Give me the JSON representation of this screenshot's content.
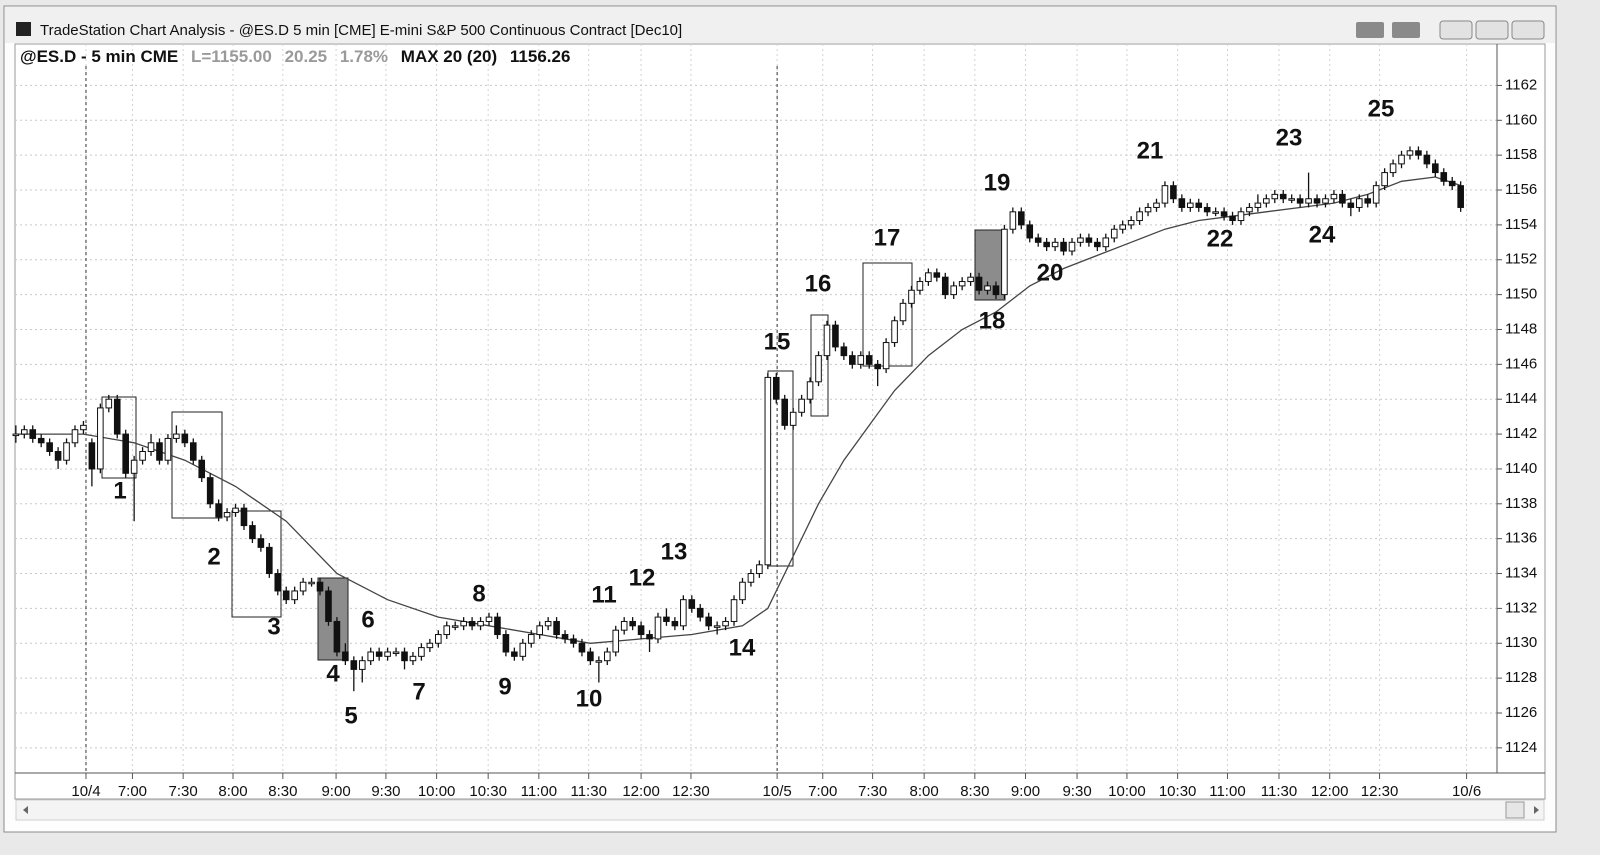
{
  "window": {
    "title": "TradeStation Chart Analysis - @ES.D 5 min [CME] E-mini S&P 500 Continuous Contract [Dec10]"
  },
  "header": {
    "symbol": "@ES.D - 5 min CME",
    "last": "L=1155.00",
    "change": "20.25",
    "change_pct": "1.78%",
    "indicator": "MAX 20 (20)",
    "indicator_value": "1156.26"
  },
  "chart_data": {
    "type": "candlestick",
    "ohlc": [
      [
        1142,
        1142.5,
        1141.5,
        1142
      ],
      [
        1142,
        1142.5,
        1141.75,
        1142.25
      ],
      [
        1142.25,
        1142.5,
        1141.5,
        1141.75
      ],
      [
        1141.75,
        1142,
        1141.25,
        1141.5
      ],
      [
        1141.5,
        1141.75,
        1140.75,
        1141
      ],
      [
        1141,
        1141.25,
        1140,
        1140.5
      ],
      [
        1140.5,
        1141.75,
        1140.25,
        1141.5
      ],
      [
        1141.5,
        1142.5,
        1141.25,
        1142.25
      ],
      [
        1142.25,
        1142.75,
        1142,
        1142.5
      ],
      [
        1141.5,
        1141.75,
        1139,
        1140
      ],
      [
        1140,
        1143.75,
        1139.75,
        1143.5
      ],
      [
        1143.5,
        1144.25,
        1143.25,
        1144
      ],
      [
        1144,
        1144.25,
        1141.75,
        1142
      ],
      [
        1142,
        1142.25,
        1139.5,
        1139.75
      ],
      [
        1139.75,
        1140.75,
        1137,
        1140.5
      ],
      [
        1140.5,
        1141.25,
        1140.25,
        1141
      ],
      [
        1141,
        1142,
        1140.75,
        1141.5
      ],
      [
        1141.5,
        1141.75,
        1140.25,
        1140.5
      ],
      [
        1140.5,
        1142,
        1140.25,
        1141.75
      ],
      [
        1141.75,
        1142.5,
        1141.5,
        1142
      ],
      [
        1142,
        1142.25,
        1141.25,
        1141.5
      ],
      [
        1141.5,
        1141.75,
        1140.25,
        1140.5
      ],
      [
        1140.5,
        1140.75,
        1139.25,
        1139.5
      ],
      [
        1139.5,
        1139.75,
        1137.75,
        1138
      ],
      [
        1138,
        1138.25,
        1137,
        1137.25
      ],
      [
        1137.25,
        1137.75,
        1137,
        1137.5
      ],
      [
        1137.5,
        1138,
        1137.25,
        1137.75
      ],
      [
        1137.75,
        1138,
        1136.5,
        1136.75
      ],
      [
        1136.75,
        1137,
        1135.75,
        1136
      ],
      [
        1136,
        1136.25,
        1135.25,
        1135.5
      ],
      [
        1135.5,
        1135.75,
        1133.75,
        1134
      ],
      [
        1134,
        1134.25,
        1132.75,
        1133
      ],
      [
        1133,
        1133.25,
        1132.25,
        1132.5
      ],
      [
        1132.5,
        1133.25,
        1132.25,
        1133
      ],
      [
        1133,
        1133.75,
        1132.75,
        1133.5
      ],
      [
        1133.5,
        1133.75,
        1133.25,
        1133.5
      ],
      [
        1133.5,
        1133.75,
        1132.75,
        1133
      ],
      [
        1133,
        1133.25,
        1131,
        1131.25
      ],
      [
        1131.25,
        1131.5,
        1129.25,
        1129.5
      ],
      [
        1129.5,
        1130,
        1128.75,
        1129
      ],
      [
        1129,
        1129.25,
        1127.25,
        1128.5
      ],
      [
        1128.5,
        1129.25,
        1127.75,
        1129
      ],
      [
        1129,
        1129.75,
        1128.75,
        1129.5
      ],
      [
        1129.5,
        1129.75,
        1129,
        1129.25
      ],
      [
        1129.25,
        1129.75,
        1129,
        1129.5
      ],
      [
        1129.5,
        1129.75,
        1129.25,
        1129.5
      ],
      [
        1129.5,
        1129.75,
        1128.5,
        1129
      ],
      [
        1129,
        1129.5,
        1128.75,
        1129.25
      ],
      [
        1129.25,
        1130,
        1129,
        1129.75
      ],
      [
        1129.75,
        1130.25,
        1129.5,
        1130
      ],
      [
        1130,
        1130.75,
        1129.75,
        1130.5
      ],
      [
        1130.5,
        1131.25,
        1130.25,
        1131
      ],
      [
        1131,
        1131.25,
        1130.75,
        1131
      ],
      [
        1131,
        1131.5,
        1130.75,
        1131.25
      ],
      [
        1131.25,
        1131.5,
        1130.75,
        1131
      ],
      [
        1131,
        1131.5,
        1130.75,
        1131.25
      ],
      [
        1131.25,
        1131.75,
        1131,
        1131.5
      ],
      [
        1131.5,
        1131.75,
        1130.25,
        1130.5
      ],
      [
        1130.5,
        1130.75,
        1129.25,
        1129.5
      ],
      [
        1129.5,
        1129.75,
        1129,
        1129.25
      ],
      [
        1129.25,
        1130.25,
        1129,
        1130
      ],
      [
        1130,
        1130.75,
        1129.75,
        1130.5
      ],
      [
        1130.5,
        1131.25,
        1130.25,
        1131
      ],
      [
        1131,
        1131.5,
        1130.75,
        1131.25
      ],
      [
        1131.25,
        1131.5,
        1130.25,
        1130.5
      ],
      [
        1130.5,
        1130.75,
        1130,
        1130.25
      ],
      [
        1130.25,
        1130.5,
        1129.75,
        1130
      ],
      [
        1130,
        1130.25,
        1129.25,
        1129.5
      ],
      [
        1129.5,
        1129.75,
        1128.75,
        1129
      ],
      [
        1129,
        1129.25,
        1127.75,
        1129
      ],
      [
        1129,
        1129.75,
        1128.75,
        1129.5
      ],
      [
        1129.5,
        1131,
        1129.25,
        1130.75
      ],
      [
        1130.75,
        1131.5,
        1130.5,
        1131.25
      ],
      [
        1131.25,
        1131.5,
        1130.75,
        1131
      ],
      [
        1131,
        1131.25,
        1130.25,
        1130.5
      ],
      [
        1130.5,
        1130.75,
        1129.5,
        1130.25
      ],
      [
        1130.25,
        1131.75,
        1130,
        1131.5
      ],
      [
        1131.5,
        1132,
        1131,
        1131.25
      ],
      [
        1131.25,
        1131.5,
        1130.75,
        1131
      ],
      [
        1131,
        1132.75,
        1130.75,
        1132.5
      ],
      [
        1132.5,
        1132.75,
        1131.75,
        1132
      ],
      [
        1132,
        1132.25,
        1131.25,
        1131.5
      ],
      [
        1131.5,
        1131.75,
        1130.75,
        1131
      ],
      [
        1131,
        1131.25,
        1130.5,
        1131
      ],
      [
        1131,
        1131.5,
        1130.75,
        1131.25
      ],
      [
        1131.25,
        1132.75,
        1131,
        1132.5
      ],
      [
        1132.5,
        1133.75,
        1132.25,
        1133.5
      ],
      [
        1133.5,
        1134.25,
        1133.25,
        1134
      ],
      [
        1134,
        1134.75,
        1133.75,
        1134.5
      ],
      [
        1134.5,
        1145.5,
        1134.25,
        1145.25
      ],
      [
        1145.25,
        1145.5,
        1143.75,
        1144
      ],
      [
        1144,
        1144.25,
        1142.25,
        1142.5
      ],
      [
        1142.5,
        1143.5,
        1142.25,
        1143.25
      ],
      [
        1143.25,
        1144.25,
        1143,
        1144
      ],
      [
        1144,
        1145.25,
        1143.75,
        1145
      ],
      [
        1145,
        1146.75,
        1144.75,
        1146.5
      ],
      [
        1146.5,
        1148.5,
        1146.25,
        1148.25
      ],
      [
        1148.25,
        1148.5,
        1146.75,
        1147
      ],
      [
        1147,
        1147.25,
        1146.25,
        1146.5
      ],
      [
        1146.5,
        1146.75,
        1145.75,
        1146
      ],
      [
        1146,
        1146.75,
        1145.75,
        1146.5
      ],
      [
        1146.5,
        1146.75,
        1145.75,
        1146
      ],
      [
        1146,
        1146.25,
        1144.75,
        1145.75
      ],
      [
        1145.75,
        1147.5,
        1145.5,
        1147.25
      ],
      [
        1147.25,
        1148.75,
        1147,
        1148.5
      ],
      [
        1148.5,
        1149.75,
        1148.25,
        1149.5
      ],
      [
        1149.5,
        1150.5,
        1149.25,
        1150.25
      ],
      [
        1150.25,
        1151,
        1150,
        1150.75
      ],
      [
        1150.75,
        1151.5,
        1150.5,
        1151.25
      ],
      [
        1151.25,
        1151.5,
        1150.75,
        1151
      ],
      [
        1151,
        1151.25,
        1149.75,
        1150
      ],
      [
        1150,
        1150.75,
        1149.75,
        1150.5
      ],
      [
        1150.5,
        1151,
        1150.25,
        1150.75
      ],
      [
        1150.75,
        1151.25,
        1150.5,
        1151
      ],
      [
        1151,
        1151.25,
        1150,
        1150.25
      ],
      [
        1150.25,
        1150.75,
        1150,
        1150.5
      ],
      [
        1150.5,
        1150.75,
        1149.75,
        1150
      ],
      [
        1150,
        1154,
        1149.75,
        1153.75
      ],
      [
        1153.75,
        1155,
        1153.5,
        1154.75
      ],
      [
        1154.75,
        1155,
        1153.75,
        1154
      ],
      [
        1154,
        1154.25,
        1153,
        1153.25
      ],
      [
        1153.25,
        1153.5,
        1152.75,
        1153
      ],
      [
        1153,
        1153.25,
        1152.5,
        1152.75
      ],
      [
        1152.75,
        1153.25,
        1152.5,
        1153
      ],
      [
        1153,
        1153.25,
        1152.25,
        1152.5
      ],
      [
        1152.5,
        1153.25,
        1152.25,
        1153
      ],
      [
        1153,
        1153.5,
        1152.75,
        1153.25
      ],
      [
        1153.25,
        1153.5,
        1152.75,
        1153
      ],
      [
        1153,
        1153.25,
        1152.5,
        1152.75
      ],
      [
        1152.75,
        1153.5,
        1152.5,
        1153.25
      ],
      [
        1153.25,
        1154,
        1153,
        1153.75
      ],
      [
        1153.75,
        1154.25,
        1153.5,
        1154
      ],
      [
        1154,
        1154.5,
        1153.75,
        1154.25
      ],
      [
        1154.25,
        1155,
        1154,
        1154.75
      ],
      [
        1154.75,
        1155.25,
        1154.5,
        1155
      ],
      [
        1155,
        1155.5,
        1154.75,
        1155.25
      ],
      [
        1155.25,
        1156.5,
        1155,
        1156.25
      ],
      [
        1156.25,
        1156.5,
        1155.25,
        1155.5
      ],
      [
        1155.5,
        1155.75,
        1154.75,
        1155
      ],
      [
        1155,
        1155.5,
        1154.75,
        1155.25
      ],
      [
        1155.25,
        1155.5,
        1154.75,
        1155
      ],
      [
        1155,
        1155.25,
        1154.5,
        1154.75
      ],
      [
        1154.75,
        1155,
        1154.5,
        1154.75
      ],
      [
        1154.75,
        1155,
        1154.25,
        1154.5
      ],
      [
        1154.5,
        1154.75,
        1154,
        1154.25
      ],
      [
        1154.25,
        1155,
        1154,
        1154.75
      ],
      [
        1154.75,
        1155.25,
        1154.5,
        1155
      ],
      [
        1155,
        1155.75,
        1154.75,
        1155.25
      ],
      [
        1155.25,
        1155.75,
        1155,
        1155.5
      ],
      [
        1155.5,
        1156,
        1155.25,
        1155.75
      ],
      [
        1155.75,
        1156,
        1155.25,
        1155.5
      ],
      [
        1155.5,
        1155.75,
        1155.25,
        1155.5
      ],
      [
        1155.5,
        1155.75,
        1155,
        1155.25
      ],
      [
        1155.25,
        1157,
        1155,
        1155.5
      ],
      [
        1155.5,
        1155.75,
        1155,
        1155.25
      ],
      [
        1155.25,
        1155.75,
        1155,
        1155.5
      ],
      [
        1155.5,
        1156,
        1155.25,
        1155.75
      ],
      [
        1155.75,
        1156,
        1155,
        1155.25
      ],
      [
        1155.25,
        1155.5,
        1154.5,
        1155
      ],
      [
        1155,
        1155.75,
        1154.75,
        1155.5
      ],
      [
        1155.5,
        1155.75,
        1155,
        1155.25
      ],
      [
        1155.25,
        1156.5,
        1155,
        1156.25
      ],
      [
        1156.25,
        1157.25,
        1156,
        1157
      ],
      [
        1157,
        1157.75,
        1156.75,
        1157.5
      ],
      [
        1157.5,
        1158.25,
        1157.25,
        1158
      ],
      [
        1158,
        1158.5,
        1157.75,
        1158.25
      ],
      [
        1158.25,
        1158.5,
        1157.75,
        1158
      ],
      [
        1158,
        1158.25,
        1157.25,
        1157.5
      ],
      [
        1157.5,
        1157.75,
        1156.75,
        1157
      ],
      [
        1157,
        1157.25,
        1156.25,
        1156.5
      ],
      [
        1156.5,
        1156.75,
        1156,
        1156.25
      ],
      [
        1156.25,
        1156.5,
        1154.75,
        1155
      ]
    ],
    "ma": {
      "x": [
        0,
        8,
        14,
        20,
        26,
        32,
        38,
        44,
        50,
        56,
        62,
        68,
        74,
        80,
        86,
        89,
        92,
        95,
        98,
        101,
        104,
        108,
        112,
        116,
        120,
        124,
        128,
        132,
        136,
        140,
        144,
        148,
        152,
        156,
        160,
        164,
        168,
        171
      ],
      "values": [
        1142,
        1142,
        1141.5,
        1140.5,
        1139,
        1137,
        1134,
        1132.5,
        1131.5,
        1131,
        1130.5,
        1130,
        1130.25,
        1130.5,
        1131,
        1132,
        1135,
        1138,
        1140.5,
        1142.5,
        1144.5,
        1146.5,
        1148,
        1149,
        1150.5,
        1151.5,
        1152.25,
        1153,
        1153.75,
        1154.25,
        1154.5,
        1154.75,
        1155,
        1155.25,
        1155.75,
        1156.5,
        1156.75,
        1156.26
      ]
    },
    "ylim": [
      1122.5,
      1163
    ],
    "yticks": [
      1124,
      1126,
      1128,
      1130,
      1132,
      1134,
      1136,
      1138,
      1140,
      1142,
      1144,
      1146,
      1148,
      1150,
      1152,
      1154,
      1156,
      1158,
      1160,
      1162
    ],
    "xlim": [
      -0.1,
      175.3
    ],
    "xticks": [
      {
        "value": 8.3,
        "label": "10/4"
      },
      {
        "value": 13.8,
        "label": "7:00"
      },
      {
        "value": 19.8,
        "label": "7:30"
      },
      {
        "value": 25.7,
        "label": "8:00"
      },
      {
        "value": 31.6,
        "label": "8:30"
      },
      {
        "value": 37.9,
        "label": "9:00"
      },
      {
        "value": 43.8,
        "label": "9:30"
      },
      {
        "value": 49.8,
        "label": "10:00"
      },
      {
        "value": 55.9,
        "label": "10:30"
      },
      {
        "value": 61.9,
        "label": "11:00"
      },
      {
        "value": 67.8,
        "label": "11:30"
      },
      {
        "value": 74,
        "label": "12:00"
      },
      {
        "value": 79.9,
        "label": "12:30"
      },
      {
        "value": 90.1,
        "label": "10/5"
      },
      {
        "value": 95.5,
        "label": "7:00"
      },
      {
        "value": 101.4,
        "label": "7:30"
      },
      {
        "value": 107.5,
        "label": "8:00"
      },
      {
        "value": 113.5,
        "label": "8:30"
      },
      {
        "value": 119.5,
        "label": "9:00"
      },
      {
        "value": 125.6,
        "label": "9:30"
      },
      {
        "value": 131.5,
        "label": "10:00"
      },
      {
        "value": 137.5,
        "label": "10:30"
      },
      {
        "value": 143.4,
        "label": "11:00"
      },
      {
        "value": 149.5,
        "label": "11:30"
      },
      {
        "value": 155.5,
        "label": "12:00"
      },
      {
        "value": 161.4,
        "label": "12:30"
      },
      {
        "value": 171.7,
        "label": "10/6"
      }
    ],
    "grid": true,
    "annotations": [
      "1",
      "2",
      "3",
      "4",
      "5",
      "6",
      "7",
      "8",
      "9",
      "10",
      "11",
      "12",
      "13",
      "14",
      "15",
      "16",
      "17",
      "18",
      "19",
      "20",
      "21",
      "22",
      "23",
      "24",
      "25"
    ]
  }
}
